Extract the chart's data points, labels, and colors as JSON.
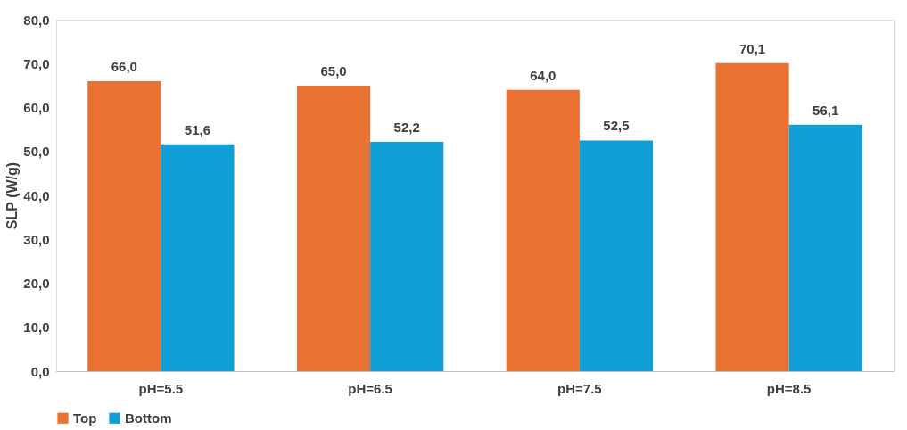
{
  "chart_data": {
    "type": "bar",
    "ylabel": "SLP (W/g)",
    "categories": [
      "pH=5.5",
      "pH=6.5",
      "pH=7.5",
      "pH=8.5"
    ],
    "series": [
      {
        "name": "Top",
        "color": "#e97132",
        "values": [
          66.0,
          65.0,
          64.0,
          70.1
        ],
        "value_labels": [
          "66,0",
          "65,0",
          "64,0",
          "70,1"
        ]
      },
      {
        "name": "Bottom",
        "color": "#0f9ed5",
        "values": [
          51.6,
          52.2,
          52.5,
          56.1
        ],
        "value_labels": [
          "51,6",
          "52,2",
          "52,5",
          "56,1"
        ]
      }
    ],
    "ylim": [
      0,
      80
    ],
    "yticks": [
      {
        "value": 0,
        "label": "0,0"
      },
      {
        "value": 10,
        "label": "10,0"
      },
      {
        "value": 20,
        "label": "20,0"
      },
      {
        "value": 30,
        "label": "30,0"
      },
      {
        "value": 40,
        "label": "40,0"
      },
      {
        "value": 50,
        "label": "50,0"
      },
      {
        "value": 60,
        "label": "60,0"
      },
      {
        "value": 70,
        "label": "70,0"
      },
      {
        "value": 80,
        "label": "80,0"
      }
    ],
    "grid": false,
    "legend": "bottom"
  }
}
